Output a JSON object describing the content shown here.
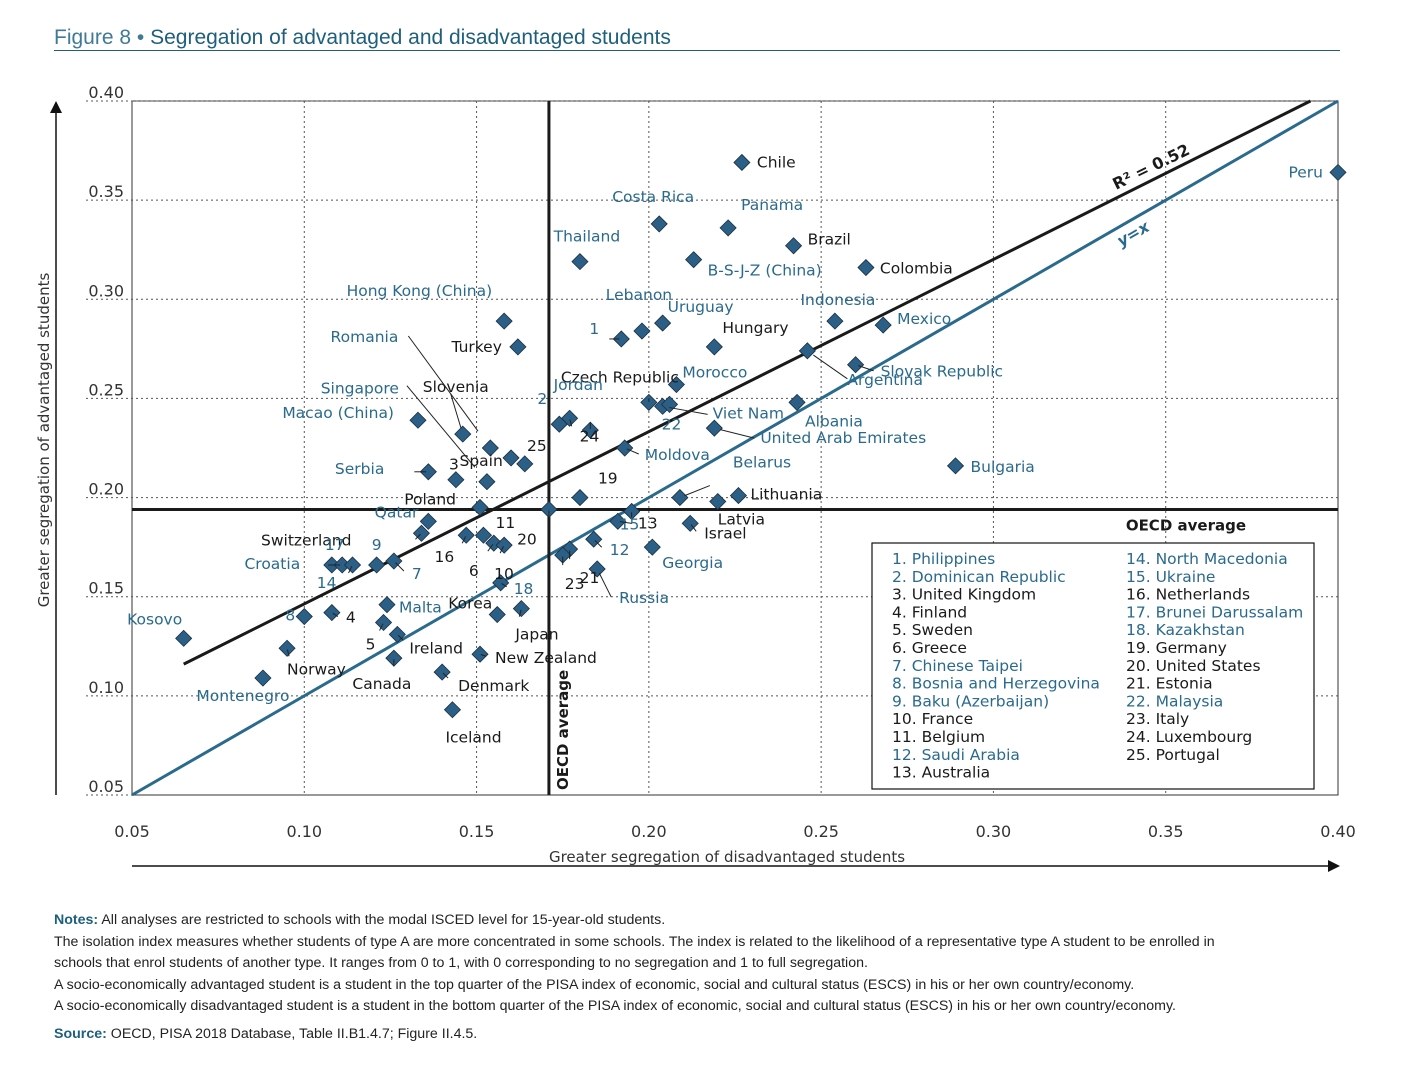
{
  "figure": {
    "label": "Figure 8",
    "bullet": "•",
    "title": "Segregation of advantaged and disadvantaged students"
  },
  "colors": {
    "teal": "#2a6a8d",
    "marker": "#2c5f86",
    "black": "#1a1a1a",
    "grid": "#555555"
  },
  "chart_data": {
    "type": "scatter",
    "title": "Segregation of advantaged and disadvantaged students",
    "xlabel": "Greater segregation of disadvantaged students",
    "ylabel": "Greater segregation of advantaged students",
    "xlim": [
      0.05,
      0.4
    ],
    "ylim": [
      0.05,
      0.4
    ],
    "xticks": [
      "0.05",
      "0.10",
      "0.15",
      "0.20",
      "0.25",
      "0.30",
      "0.35",
      "0.40"
    ],
    "yticks": [
      "0.05",
      "0.10",
      "0.15",
      "0.20",
      "0.25",
      "0.30",
      "0.35",
      "0.40"
    ],
    "grid": true,
    "oecd_average": {
      "x": 0.171,
      "y": 0.194,
      "label": "OECD average"
    },
    "regression": {
      "label": "R² = 0.52",
      "x": [
        0.065,
        0.392
      ],
      "y": [
        0.116,
        0.4
      ]
    },
    "identity_line": {
      "label": "y=x"
    },
    "points": [
      {
        "name": "Chile",
        "x": 0.227,
        "y": 0.369,
        "color": "black"
      },
      {
        "name": "Peru",
        "x": 0.4,
        "y": 0.364,
        "color": "teal"
      },
      {
        "name": "Costa Rica",
        "x": 0.203,
        "y": 0.338,
        "color": "teal"
      },
      {
        "name": "Panama",
        "x": 0.223,
        "y": 0.336,
        "color": "teal"
      },
      {
        "name": "Brazil",
        "x": 0.242,
        "y": 0.327,
        "color": "black"
      },
      {
        "name": "Thailand",
        "x": 0.18,
        "y": 0.319,
        "color": "teal"
      },
      {
        "name": "B-S-J-Z (China)",
        "x": 0.213,
        "y": 0.32,
        "color": "teal"
      },
      {
        "name": "Colombia",
        "x": 0.263,
        "y": 0.316,
        "color": "black"
      },
      {
        "name": "Hong Kong (China)",
        "x": 0.158,
        "y": 0.289,
        "color": "teal"
      },
      {
        "name": "Lebanon",
        "x": 0.198,
        "y": 0.284,
        "color": "teal"
      },
      {
        "name": "Uruguay",
        "x": 0.204,
        "y": 0.288,
        "color": "teal"
      },
      {
        "name": "1",
        "x": 0.192,
        "y": 0.28,
        "color": "teal"
      },
      {
        "name": "Indonesia",
        "x": 0.254,
        "y": 0.289,
        "color": "teal"
      },
      {
        "name": "Mexico",
        "x": 0.268,
        "y": 0.287,
        "color": "teal"
      },
      {
        "name": "Hungary",
        "x": 0.219,
        "y": 0.276,
        "color": "black"
      },
      {
        "name": "Turkey",
        "x": 0.162,
        "y": 0.276,
        "color": "black"
      },
      {
        "name": "Argentina",
        "x": 0.246,
        "y": 0.274,
        "color": "teal"
      },
      {
        "name": "Slovak Republic",
        "x": 0.26,
        "y": 0.267,
        "color": "teal"
      },
      {
        "name": "Morocco",
        "x": 0.208,
        "y": 0.257,
        "color": "teal"
      },
      {
        "name": "Czech Republic",
        "x": 0.2,
        "y": 0.248,
        "color": "black"
      },
      {
        "name": "Viet Nam",
        "x": 0.204,
        "y": 0.246,
        "color": "teal"
      },
      {
        "name": "22",
        "x": 0.206,
        "y": 0.247,
        "color": "teal"
      },
      {
        "name": "Albania",
        "x": 0.243,
        "y": 0.248,
        "color": "teal"
      },
      {
        "name": "United Arab Emirates",
        "x": 0.219,
        "y": 0.235,
        "color": "teal"
      },
      {
        "name": "Jordan",
        "x": 0.183,
        "y": 0.234,
        "color": "teal"
      },
      {
        "name": "2",
        "x": 0.174,
        "y": 0.237,
        "color": "teal"
      },
      {
        "name": "24",
        "x": 0.177,
        "y": 0.24,
        "color": "black"
      },
      {
        "name": "Macao (China)",
        "x": 0.133,
        "y": 0.239,
        "color": "teal"
      },
      {
        "name": "Slovenia",
        "x": 0.146,
        "y": 0.232,
        "color": "black"
      },
      {
        "name": "Moldova",
        "x": 0.193,
        "y": 0.225,
        "color": "teal"
      },
      {
        "name": "Romania",
        "x": 0.154,
        "y": 0.225,
        "color": "teal"
      },
      {
        "name": "25",
        "x": 0.16,
        "y": 0.22,
        "color": "black"
      },
      {
        "name": "Spain",
        "x": 0.164,
        "y": 0.217,
        "color": "black"
      },
      {
        "name": "Bulgaria",
        "x": 0.289,
        "y": 0.216,
        "color": "teal"
      },
      {
        "name": "Serbia",
        "x": 0.136,
        "y": 0.213,
        "color": "teal"
      },
      {
        "name": "3",
        "x": 0.144,
        "y": 0.209,
        "color": "black"
      },
      {
        "name": "Singapore",
        "x": 0.153,
        "y": 0.208,
        "color": "teal"
      },
      {
        "name": "Belarus",
        "x": 0.209,
        "y": 0.2,
        "color": "teal"
      },
      {
        "name": "Lithuania",
        "x": 0.226,
        "y": 0.201,
        "color": "black"
      },
      {
        "name": "Latvia",
        "x": 0.22,
        "y": 0.198,
        "color": "black"
      },
      {
        "name": "19",
        "x": 0.18,
        "y": 0.2,
        "color": "black"
      },
      {
        "name": "Poland",
        "x": 0.151,
        "y": 0.195,
        "color": "black"
      },
      {
        "name": "20",
        "x": 0.171,
        "y": 0.194,
        "color": "black"
      },
      {
        "name": "15",
        "x": 0.195,
        "y": 0.193,
        "color": "teal"
      },
      {
        "name": "13",
        "x": 0.191,
        "y": 0.188,
        "color": "black"
      },
      {
        "name": "Qatar",
        "x": 0.136,
        "y": 0.188,
        "color": "teal"
      },
      {
        "name": "Israel",
        "x": 0.212,
        "y": 0.187,
        "color": "black"
      },
      {
        "name": "Switzerland",
        "x": 0.134,
        "y": 0.182,
        "color": "black"
      },
      {
        "name": "16",
        "x": 0.147,
        "y": 0.181,
        "color": "black"
      },
      {
        "name": "11",
        "x": 0.152,
        "y": 0.181,
        "color": "black"
      },
      {
        "name": "6",
        "x": 0.155,
        "y": 0.177,
        "color": "black"
      },
      {
        "name": "10",
        "x": 0.158,
        "y": 0.176,
        "color": "black"
      },
      {
        "name": "12",
        "x": 0.184,
        "y": 0.179,
        "color": "teal"
      },
      {
        "name": "Georgia",
        "x": 0.201,
        "y": 0.175,
        "color": "teal"
      },
      {
        "name": "21",
        "x": 0.177,
        "y": 0.174,
        "color": "black"
      },
      {
        "name": "23",
        "x": 0.175,
        "y": 0.171,
        "color": "black"
      },
      {
        "name": "17",
        "x": 0.108,
        "y": 0.166,
        "color": "teal"
      },
      {
        "name": "Croatia",
        "x": 0.111,
        "y": 0.166,
        "color": "teal"
      },
      {
        "name": "14",
        "x": 0.114,
        "y": 0.166,
        "color": "teal"
      },
      {
        "name": "9",
        "x": 0.121,
        "y": 0.166,
        "color": "teal"
      },
      {
        "name": "7",
        "x": 0.126,
        "y": 0.168,
        "color": "teal"
      },
      {
        "name": "Russia",
        "x": 0.185,
        "y": 0.164,
        "color": "teal"
      },
      {
        "name": "18",
        "x": 0.157,
        "y": 0.157,
        "color": "teal"
      },
      {
        "name": "Malta",
        "x": 0.124,
        "y": 0.146,
        "color": "teal"
      },
      {
        "name": "4",
        "x": 0.108,
        "y": 0.142,
        "color": "black"
      },
      {
        "name": "8",
        "x": 0.1,
        "y": 0.14,
        "color": "teal"
      },
      {
        "name": "Japan",
        "x": 0.163,
        "y": 0.144,
        "color": "black"
      },
      {
        "name": "Korea",
        "x": 0.156,
        "y": 0.141,
        "color": "black"
      },
      {
        "name": "5",
        "x": 0.123,
        "y": 0.137,
        "color": "black"
      },
      {
        "name": "Ireland",
        "x": 0.127,
        "y": 0.131,
        "color": "black"
      },
      {
        "name": "Kosovo",
        "x": 0.065,
        "y": 0.129,
        "color": "teal"
      },
      {
        "name": "Norway",
        "x": 0.095,
        "y": 0.124,
        "color": "black"
      },
      {
        "name": "New Zealand",
        "x": 0.151,
        "y": 0.121,
        "color": "black"
      },
      {
        "name": "Canada",
        "x": 0.126,
        "y": 0.119,
        "color": "black"
      },
      {
        "name": "Denmark",
        "x": 0.14,
        "y": 0.112,
        "color": "black"
      },
      {
        "name": "Montenegro",
        "x": 0.088,
        "y": 0.109,
        "color": "teal"
      },
      {
        "name": "Iceland",
        "x": 0.143,
        "y": 0.093,
        "color": "black"
      }
    ],
    "legend": {
      "col1": [
        {
          "text": "1. Philippines",
          "color": "teal"
        },
        {
          "text": "2. Dominican Republic",
          "color": "teal"
        },
        {
          "text": "3. United Kingdom",
          "color": "black"
        },
        {
          "text": "4. Finland",
          "color": "black"
        },
        {
          "text": "5. Sweden",
          "color": "black"
        },
        {
          "text": "6. Greece",
          "color": "black"
        },
        {
          "text": "7. Chinese Taipei",
          "color": "teal"
        },
        {
          "text": "8. Bosnia and Herzegovina",
          "color": "teal"
        },
        {
          "text": "9. Baku (Azerbaijan)",
          "color": "teal"
        },
        {
          "text": "10. France",
          "color": "black"
        },
        {
          "text": "11. Belgium",
          "color": "black"
        },
        {
          "text": "12. Saudi Arabia",
          "color": "teal"
        },
        {
          "text": "13. Australia",
          "color": "black"
        }
      ],
      "col2": [
        {
          "text": "14. North Macedonia",
          "color": "teal"
        },
        {
          "text": "15. Ukraine",
          "color": "teal"
        },
        {
          "text": "16. Netherlands",
          "color": "black"
        },
        {
          "text": "17. Brunei Darussalam",
          "color": "teal"
        },
        {
          "text": "18. Kazakhstan",
          "color": "teal"
        },
        {
          "text": "19. Germany",
          "color": "black"
        },
        {
          "text": "20. United States",
          "color": "black"
        },
        {
          "text": "21. Estonia",
          "color": "black"
        },
        {
          "text": "22. Malaysia",
          "color": "teal"
        },
        {
          "text": "23. Italy",
          "color": "black"
        },
        {
          "text": "24. Luxembourg",
          "color": "black"
        },
        {
          "text": "25. Portugal",
          "color": "black"
        }
      ]
    }
  },
  "notes": {
    "notes_head": "Notes:",
    "line1": "All analyses are restricted to schools with the modal ISCED level for 15-year-old students.",
    "line2": "The isolation index measures whether students of type A are more concentrated in some schools. The index is related to the likelihood of a representative type A student to be enrolled in",
    "line3": "schools that enrol students of another type. It ranges from 0 to 1, with 0 corresponding to no segregation and 1 to full segregation.",
    "line4": "A socio-economically advantaged student is a student in the top quarter of the PISA index of economic, social and cultural status (ESCS) in his or her own country/economy.",
    "line5": "A socio-economically disadvantaged student is a student in the bottom quarter of the PISA index of economic, social and cultural status (ESCS) in his or her own country/economy.",
    "source_head": "Source:",
    "source": "OECD, PISA 2018 Database, Table II.B1.4.7; Figure II.4.5."
  }
}
